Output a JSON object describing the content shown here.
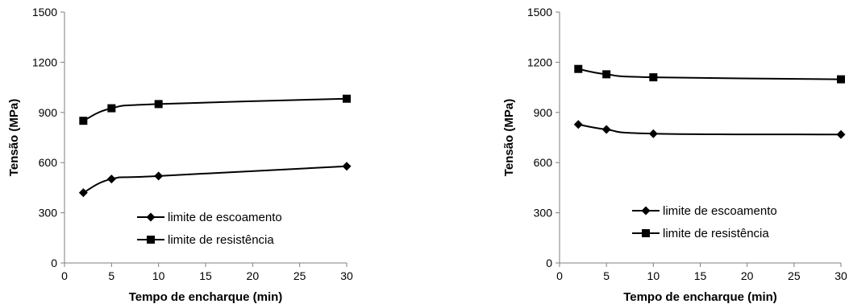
{
  "chart_data": [
    {
      "type": "line",
      "xlabel": "Tempo de encharque (min)",
      "ylabel": "Tensão (MPa)",
      "xlim": [
        0,
        30
      ],
      "ylim": [
        0,
        1500
      ],
      "xticks": [
        "0",
        "5",
        "10",
        "15",
        "20",
        "25",
        "30"
      ],
      "yticks": [
        "0",
        "300",
        "600",
        "900",
        "1200",
        "1500"
      ],
      "grid": false,
      "legend_position": "center",
      "series": [
        {
          "name": "limite de escoamento",
          "marker": "diamond",
          "x": [
            2,
            5,
            10,
            30
          ],
          "y": [
            420,
            502,
            520,
            578
          ]
        },
        {
          "name": "limite de resistência",
          "marker": "square",
          "x": [
            2,
            5,
            10,
            30
          ],
          "y": [
            850,
            925,
            950,
            982
          ]
        }
      ]
    },
    {
      "type": "line",
      "xlabel": "Tempo de encharque (min)",
      "ylabel": "Tensão (MPa)",
      "xlim": [
        0,
        30
      ],
      "ylim": [
        0,
        1500
      ],
      "xticks": [
        "0",
        "5",
        "10",
        "15",
        "20",
        "25",
        "30"
      ],
      "yticks": [
        "0",
        "300",
        "600",
        "900",
        "1200",
        "1500"
      ],
      "grid": false,
      "legend_position": "center",
      "series": [
        {
          "name": "limite de escoamento",
          "marker": "diamond",
          "x": [
            2,
            5,
            10,
            30
          ],
          "y": [
            828,
            798,
            773,
            768
          ]
        },
        {
          "name": "limite de resistência",
          "marker": "square",
          "x": [
            2,
            5,
            10,
            30
          ],
          "y": [
            1160,
            1128,
            1110,
            1098
          ]
        }
      ]
    }
  ]
}
